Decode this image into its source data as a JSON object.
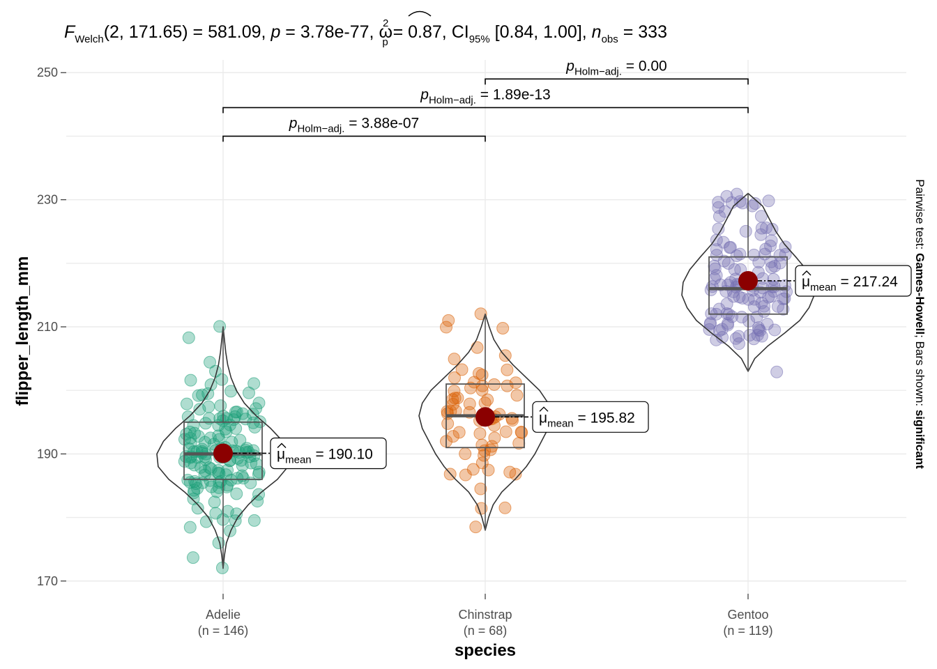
{
  "title": {
    "F": "F",
    "welch_sub": "Welch",
    "stat": "(2, 171.65) = 581.09, ",
    "p": "p",
    "p_val": " = 3.78e-77, ",
    "omega": "ω",
    "omega_sup": "2",
    "omega_sub": "p",
    "omega_val": " = 0.87, CI",
    "ci_sub": "95%",
    "ci_val": " [0.84, 1.00], ",
    "n": "n",
    "n_sub": "obs",
    "n_val": " = 333"
  },
  "side_caption": {
    "prefix": "Pairwise test: ",
    "test": "Games-Howell",
    "middle": "; Bars shown: ",
    "bars": "significant"
  },
  "chart_data": {
    "type": "violin-box-scatter",
    "xlabel": "species",
    "ylabel": "flipper_length_mm",
    "ylim": [
      168,
      252
    ],
    "yticks": [
      170,
      190,
      210,
      230,
      250
    ],
    "grid": true,
    "groups": [
      {
        "name": "Adelie",
        "n_label": "(n = 146)",
        "color": "#1b9e77",
        "box": {
          "q1": 186,
          "median": 190,
          "q3": 195,
          "whisker_low": 172,
          "whisker_high": 210
        },
        "mean": 190.1,
        "mean_label": "190.10",
        "violin": [
          [
            172,
            0.0
          ],
          [
            174,
            0.02
          ],
          [
            176,
            0.05
          ],
          [
            178,
            0.12
          ],
          [
            180,
            0.22
          ],
          [
            182,
            0.38
          ],
          [
            184,
            0.58
          ],
          [
            186,
            0.82
          ],
          [
            188,
            0.98
          ],
          [
            190,
            1.0
          ],
          [
            192,
            0.9
          ],
          [
            194,
            0.72
          ],
          [
            196,
            0.5
          ],
          [
            198,
            0.32
          ],
          [
            200,
            0.2
          ],
          [
            202,
            0.12
          ],
          [
            204,
            0.07
          ],
          [
            206,
            0.04
          ],
          [
            208,
            0.02
          ],
          [
            210,
            0.0
          ]
        ],
        "points": [
          172,
          174,
          176,
          178,
          178,
          179,
          180,
          180,
          181,
          181,
          182,
          182,
          183,
          184,
          184,
          184,
          184,
          185,
          185,
          185,
          185,
          185,
          185,
          186,
          186,
          186,
          186,
          186,
          186,
          186,
          187,
          187,
          187,
          187,
          187,
          187,
          187,
          188,
          188,
          188,
          188,
          188,
          188,
          189,
          189,
          189,
          189,
          189,
          189,
          189,
          190,
          190,
          190,
          190,
          190,
          190,
          190,
          190,
          190,
          190,
          190,
          190,
          191,
          191,
          191,
          191,
          191,
          191,
          191,
          192,
          192,
          192,
          192,
          192,
          193,
          193,
          193,
          193,
          193,
          193,
          194,
          194,
          194,
          194,
          195,
          195,
          195,
          195,
          195,
          195,
          195,
          195,
          196,
          196,
          196,
          196,
          196,
          197,
          197,
          197,
          197,
          198,
          198,
          198,
          199,
          199,
          199,
          200,
          200,
          201,
          201,
          202,
          202,
          203,
          205,
          208,
          210,
          180,
          181,
          183,
          184,
          186,
          187,
          188,
          189,
          190,
          190,
          191,
          191,
          192,
          193,
          194,
          195,
          196,
          197,
          190,
          189,
          188,
          187,
          186,
          185,
          184,
          190,
          191,
          192,
          189
        ]
      },
      {
        "name": "Chinstrap",
        "n_label": "(n = 68)",
        "color": "#d95f02",
        "box": {
          "q1": 191,
          "median": 196,
          "q3": 201,
          "whisker_low": 178,
          "whisker_high": 212
        },
        "mean": 195.82,
        "mean_label": "195.82",
        "violin": [
          [
            178,
            0.0
          ],
          [
            180,
            0.05
          ],
          [
            182,
            0.12
          ],
          [
            184,
            0.25
          ],
          [
            186,
            0.45
          ],
          [
            188,
            0.62
          ],
          [
            190,
            0.75
          ],
          [
            192,
            0.85
          ],
          [
            194,
            0.95
          ],
          [
            196,
            1.0
          ],
          [
            198,
            0.95
          ],
          [
            200,
            0.82
          ],
          [
            202,
            0.62
          ],
          [
            204,
            0.42
          ],
          [
            206,
            0.25
          ],
          [
            208,
            0.13
          ],
          [
            210,
            0.06
          ],
          [
            212,
            0.0
          ]
        ],
        "points": [
          178,
          181,
          181,
          185,
          187,
          187,
          187,
          187,
          187,
          188,
          189,
          190,
          190,
          191,
          191,
          191,
          192,
          192,
          193,
          193,
          193,
          193,
          194,
          195,
          195,
          195,
          195,
          195,
          196,
          196,
          196,
          196,
          197,
          197,
          197,
          198,
          198,
          198,
          199,
          199,
          199,
          200,
          200,
          200,
          201,
          201,
          201,
          201,
          201,
          202,
          202,
          203,
          203,
          203,
          205,
          206,
          207,
          210,
          210,
          211,
          212,
          196,
          195,
          194,
          193,
          192,
          198,
          199
        ]
      },
      {
        "name": "Gentoo",
        "n_label": "(n = 119)",
        "color": "#7570b3",
        "box": {
          "q1": 212,
          "median": 216,
          "q3": 221,
          "whisker_low": 203,
          "whisker_high": 231
        },
        "mean": 217.24,
        "mean_label": "217.24",
        "violin": [
          [
            203,
            0.0
          ],
          [
            205,
            0.1
          ],
          [
            207,
            0.3
          ],
          [
            209,
            0.55
          ],
          [
            211,
            0.78
          ],
          [
            213,
            0.92
          ],
          [
            215,
            1.0
          ],
          [
            217,
            0.98
          ],
          [
            219,
            0.88
          ],
          [
            221,
            0.72
          ],
          [
            223,
            0.55
          ],
          [
            225,
            0.42
          ],
          [
            227,
            0.32
          ],
          [
            229,
            0.22
          ],
          [
            231,
            0.0
          ]
        ],
        "points": [
          203,
          207,
          208,
          208,
          208,
          208,
          209,
          209,
          209,
          209,
          210,
          210,
          210,
          210,
          210,
          210,
          210,
          211,
          211,
          211,
          212,
          212,
          212,
          212,
          212,
          213,
          213,
          213,
          213,
          213,
          214,
          214,
          214,
          214,
          214,
          215,
          215,
          215,
          215,
          215,
          215,
          215,
          216,
          216,
          216,
          216,
          216,
          216,
          216,
          216,
          217,
          217,
          217,
          217,
          217,
          217,
          218,
          218,
          218,
          218,
          219,
          219,
          219,
          219,
          219,
          220,
          220,
          220,
          220,
          220,
          221,
          221,
          221,
          221,
          221,
          222,
          222,
          222,
          222,
          223,
          223,
          224,
          224,
          224,
          225,
          225,
          225,
          226,
          226,
          227,
          228,
          228,
          229,
          229,
          229,
          230,
          230,
          230,
          230,
          230,
          230,
          231,
          215,
          216,
          217,
          218,
          212,
          213,
          214,
          210,
          211,
          219,
          220,
          221,
          222,
          209,
          208,
          223,
          216
        ]
      }
    ],
    "comparisons": [
      {
        "from": "Adelie",
        "to": "Chinstrap",
        "y": 240,
        "p": "p",
        "p_sub": "Holm−adj.",
        "p_val": " = 3.88e-07"
      },
      {
        "from": "Adelie",
        "to": "Gentoo",
        "y": 244.5,
        "p": "p",
        "p_sub": "Holm−adj.",
        "p_val": " = 1.89e-13"
      },
      {
        "from": "Chinstrap",
        "to": "Gentoo",
        "y": 249,
        "p": "p",
        "p_sub": "Holm−adj.",
        "p_val": " = 0.00"
      }
    ],
    "mean_color": "#8b0000",
    "mean_prefix": "μ",
    "mean_sub": "mean",
    "mean_eq": " = "
  }
}
